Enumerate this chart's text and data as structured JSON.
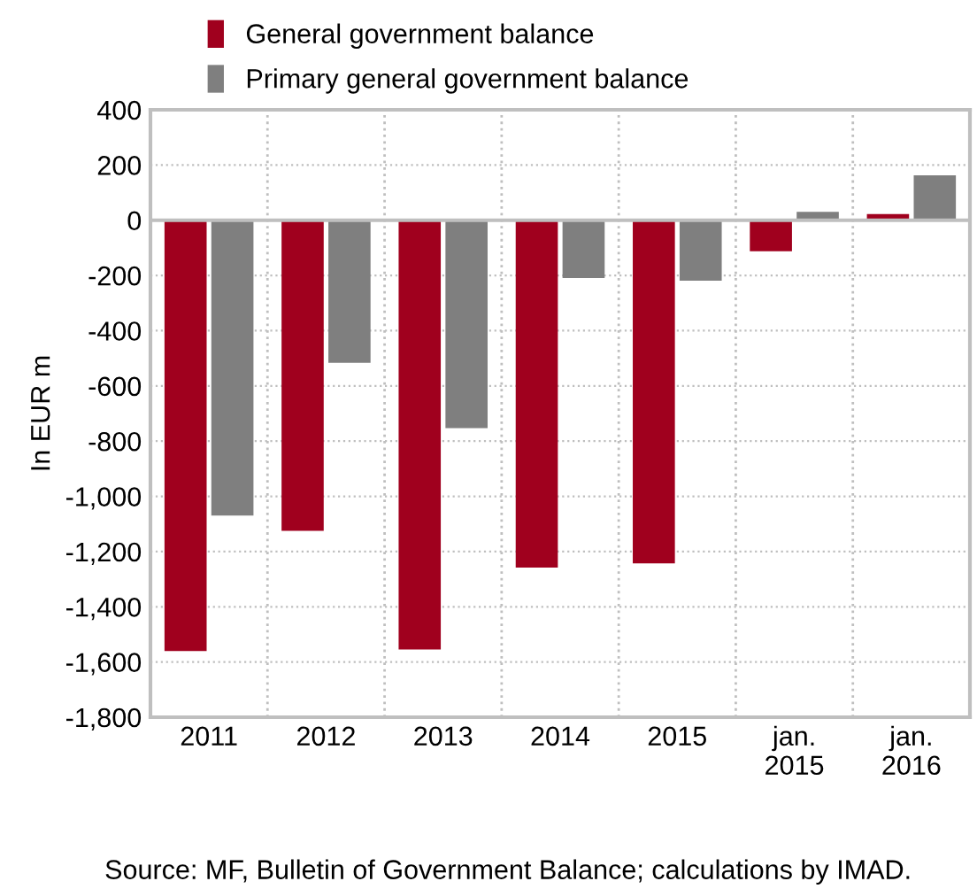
{
  "chart_data": {
    "type": "bar",
    "categories": [
      "2011",
      "2012",
      "2013",
      "2014",
      "2015",
      "jan.\n2015",
      "jan.\n2016"
    ],
    "series": [
      {
        "name": "General government balance",
        "color": "#a0001e",
        "values": [
          -1560,
          -1125,
          -1555,
          -1258,
          -1243,
          -112,
          22
        ]
      },
      {
        "name": "Primary general government balance",
        "color": "#7f7f7f",
        "values": [
          -1070,
          -516,
          -753,
          -209,
          -219,
          30,
          163
        ]
      }
    ],
    "ylabel": "In EUR m",
    "ylim": [
      -1800,
      400
    ],
    "yticks": [
      {
        "value": -1800,
        "label": "-1,800"
      },
      {
        "value": -1600,
        "label": "-1,600"
      },
      {
        "value": -1400,
        "label": "-1,400"
      },
      {
        "value": -1200,
        "label": "-1,200"
      },
      {
        "value": -1000,
        "label": "-1,000"
      },
      {
        "value": -800,
        "label": "-800"
      },
      {
        "value": -600,
        "label": "-600"
      },
      {
        "value": -400,
        "label": "-400"
      },
      {
        "value": -200,
        "label": "-200"
      },
      0,
      200,
      400
    ],
    "grid": true,
    "legend": "top left",
    "annotations": [
      "Source: MF, Bulletin of Government Balance; calculations by IMAD."
    ]
  }
}
